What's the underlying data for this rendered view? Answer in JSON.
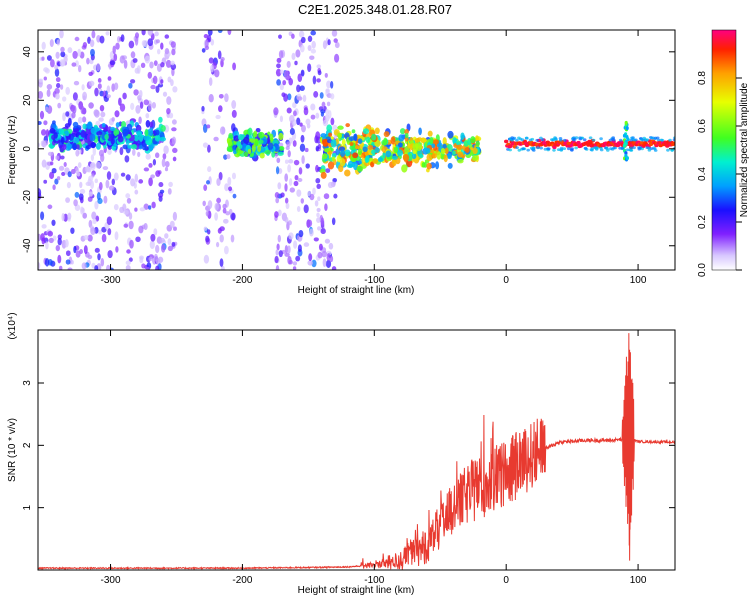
{
  "title": "C2E1.2025.348.01.28.R07",
  "chart_data": [
    {
      "type": "heatmap",
      "xlabel": "Height of straight line (km)",
      "ylabel": "Frequency (Hz)",
      "xlim": [
        -355,
        128
      ],
      "ylim": [
        -50,
        49
      ],
      "xticks": [
        "-300",
        "-200",
        "-100",
        "0",
        "100"
      ],
      "yticks": [
        "-40",
        "-20",
        "0",
        "20",
        "40"
      ],
      "colorbar": {
        "label": "Normalized spectral amplitude",
        "ticks": [
          "0.0",
          "0.2",
          "0.4",
          "0.6",
          "0.8"
        ],
        "range": [
          0,
          1
        ]
      },
      "features": [
        {
          "x_range": [
            -345,
            -260
          ],
          "freq_center": 5,
          "amplitude": 0.4
        },
        {
          "x_range": [
            -210,
            -170
          ],
          "freq_center": 2,
          "amplitude": 0.5
        },
        {
          "x_range": [
            -140,
            -20
          ],
          "freq_center": 0,
          "amplitude": 0.7
        },
        {
          "x_range": [
            0,
            128
          ],
          "freq_center": 2,
          "amplitude": 0.95
        }
      ]
    },
    {
      "type": "line",
      "xlabel": "Height of straight line (km)",
      "ylabel": "SNR (10 * v/v)",
      "yscale_label": "(x10⁴)",
      "xlim": [
        -355,
        128
      ],
      "ylim": [
        0,
        3.85
      ],
      "xticks": [
        "-300",
        "-200",
        "-100",
        "0",
        "100"
      ],
      "yticks": [
        "1",
        "2",
        "3"
      ],
      "series": [
        {
          "color": "#e83a30",
          "x": [
            -355,
            -300,
            -250,
            -200,
            -150,
            -120,
            -100,
            -80,
            -60,
            -50,
            -40,
            -30,
            -20,
            -10,
            0,
            10,
            20,
            30,
            40,
            60,
            80,
            90,
            93,
            95,
            100,
            128
          ],
          "y": [
            0.03,
            0.03,
            0.03,
            0.03,
            0.04,
            0.05,
            0.08,
            0.15,
            0.4,
            0.7,
            1.0,
            1.2,
            1.35,
            1.45,
            1.55,
            1.7,
            1.85,
            1.95,
            2.05,
            2.08,
            2.08,
            2.1,
            3.8,
            2.1,
            2.06,
            2.05
          ]
        }
      ]
    }
  ]
}
